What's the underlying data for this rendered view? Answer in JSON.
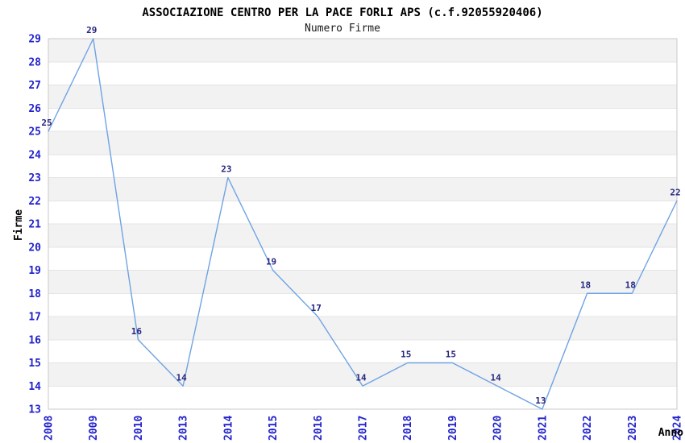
{
  "chart_data": {
    "type": "line",
    "title": "ASSOCIAZIONE CENTRO PER LA PACE FORLI APS (c.f.92055920406)",
    "subtitle": "Numero Firme",
    "xlabel": "Anno",
    "ylabel": "Firme",
    "categories": [
      "2008",
      "2009",
      "2010",
      "2013",
      "2014",
      "2015",
      "2016",
      "2017",
      "2018",
      "2019",
      "2020",
      "2021",
      "2022",
      "2023",
      "2024"
    ],
    "series": [
      {
        "name": "Numero Firme",
        "values": [
          25,
          29,
          16,
          14,
          23,
          19,
          17,
          14,
          15,
          15,
          14,
          13,
          18,
          18,
          22
        ],
        "color": "#6fa3e3"
      }
    ],
    "point_labels": true,
    "ylim": [
      13,
      29
    ],
    "ytick_step": 1,
    "grid": true,
    "legend": "none",
    "colors": {
      "tick_labels": "#2222cc",
      "point_labels": "#26267f",
      "line": "#6fa3e3",
      "band_light": "#ffffff",
      "band_dark": "#f2f2f2",
      "gridline": "#e4e4e4",
      "plot_border": "#c9c9c9",
      "title": "#000000",
      "subtitle": "#1a1a1a"
    }
  }
}
